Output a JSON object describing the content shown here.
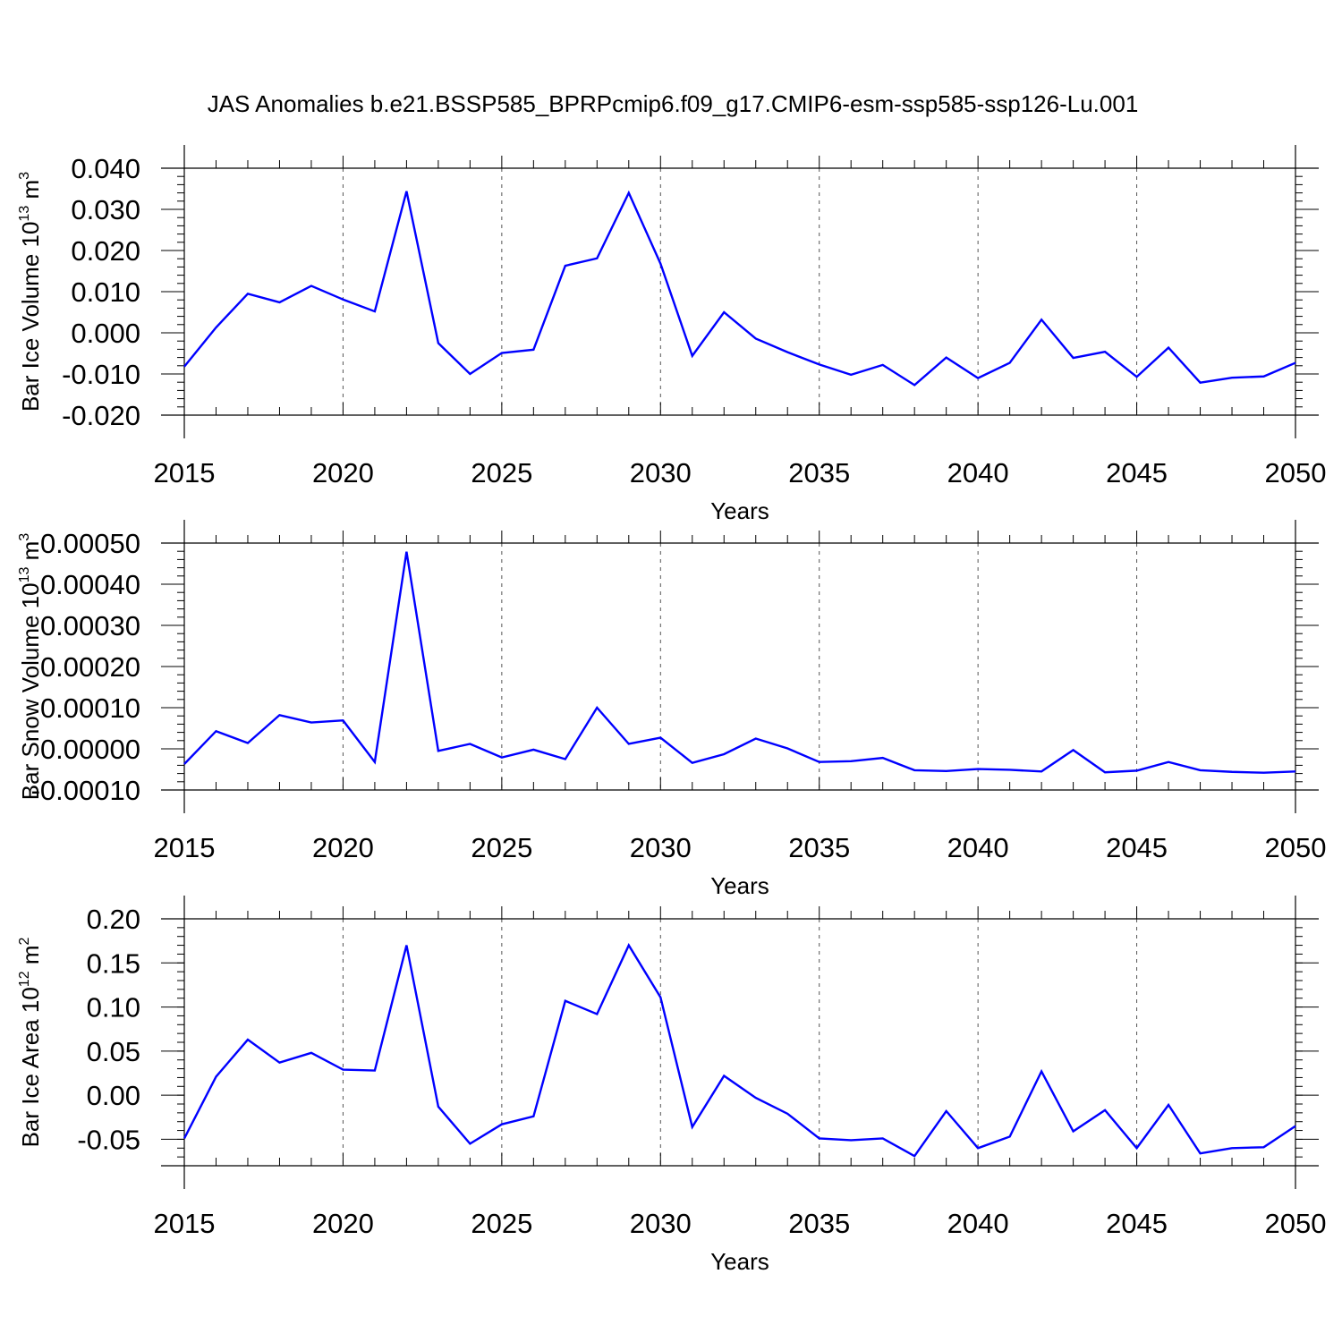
{
  "title": "JAS Anomalies b.e21.BSSP585_BPRPcmip6.f09_g17.CMIP6-esm-ssp585-ssp126-Lu.001",
  "colors": {
    "line": "#0000ff",
    "grid": "#555555",
    "axis": "#000000"
  },
  "chart_data": [
    {
      "type": "line",
      "ylabel_text": "Bar Ice Volume 10",
      "ylabel_exp": "13",
      "ylabel_unit": " m",
      "ylabel_unit_exp": "3",
      "xlabel": "Years",
      "xlim": [
        2015,
        2050
      ],
      "ylim": [
        -0.02,
        0.04
      ],
      "xticks": [
        "2015",
        "2020",
        "2025",
        "2030",
        "2035",
        "2040",
        "2045",
        "2050"
      ],
      "yticks": [
        "-0.020",
        "-0.010",
        "0.000",
        "0.010",
        "0.020",
        "0.030",
        "0.040"
      ],
      "grid_x": [
        2020,
        2025,
        2030,
        2035,
        2040,
        2045
      ],
      "x": [
        2015,
        2016,
        2017,
        2018,
        2019,
        2020,
        2021,
        2022,
        2023,
        2024,
        2025,
        2026,
        2027,
        2028,
        2029,
        2030,
        2031,
        2032,
        2033,
        2034,
        2035,
        2036,
        2037,
        2038,
        2039,
        2040,
        2041,
        2042,
        2043,
        2044,
        2045,
        2046,
        2047,
        2048,
        2049,
        2050
      ],
      "series": [
        {
          "values": [
            -0.0082,
            0.0013,
            0.0095,
            0.0074,
            0.0114,
            0.0081,
            0.0052,
            0.0344,
            -0.0025,
            -0.01,
            -0.0049,
            -0.0041,
            0.0163,
            0.0181,
            0.034,
            0.0168,
            -0.0056,
            0.005,
            -0.0014,
            -0.0047,
            -0.0077,
            -0.0102,
            -0.0078,
            -0.0127,
            -0.006,
            -0.011,
            -0.0073,
            0.0032,
            -0.0061,
            -0.0046,
            -0.0107,
            -0.0036,
            -0.0121,
            -0.0109,
            -0.0106,
            -0.0073
          ]
        }
      ]
    },
    {
      "type": "line",
      "ylabel_text": "Bar Snow Volume 10",
      "ylabel_exp": "13",
      "ylabel_unit": " m",
      "ylabel_unit_exp": "3",
      "xlabel": "Years",
      "xlim": [
        2015,
        2050
      ],
      "ylim": [
        -0.0001,
        0.0005
      ],
      "xticks": [
        "2015",
        "2020",
        "2025",
        "2030",
        "2035",
        "2040",
        "2045",
        "2050"
      ],
      "yticks": [
        "-0.00010",
        "0.00000",
        "0.00010",
        "0.00020",
        "0.00030",
        "0.00040",
        "0.00050"
      ],
      "grid_x": [
        2020,
        2025,
        2030,
        2035,
        2040,
        2045
      ],
      "x": [
        2015,
        2016,
        2017,
        2018,
        2019,
        2020,
        2021,
        2022,
        2023,
        2024,
        2025,
        2026,
        2027,
        2028,
        2029,
        2030,
        2031,
        2032,
        2033,
        2034,
        2035,
        2036,
        2037,
        2038,
        2039,
        2040,
        2041,
        2042,
        2043,
        2044,
        2045,
        2046,
        2047,
        2048,
        2049,
        2050
      ],
      "series": [
        {
          "values": [
            -3.7e-05,
            4.3e-05,
            1.4e-05,
            8.2e-05,
            6.4e-05,
            6.9e-05,
            -3.2e-05,
            0.000479,
            -5e-06,
            1.2e-05,
            -2.1e-05,
            -2e-06,
            -2.5e-05,
            0.0001,
            1.2e-05,
            2.7e-05,
            -3.4e-05,
            -1.3e-05,
            2.5e-05,
            1e-06,
            -3.2e-05,
            -3e-05,
            -2.2e-05,
            -5.2e-05,
            -5.4e-05,
            -4.9e-05,
            -5.1e-05,
            -5.5e-05,
            -3e-06,
            -5.7e-05,
            -5.3e-05,
            -3.2e-05,
            -5.2e-05,
            -5.6e-05,
            -5.8e-05,
            -5.5e-05
          ]
        }
      ]
    },
    {
      "type": "line",
      "ylabel_text": "Bar Ice Area 10",
      "ylabel_exp": "12",
      "ylabel_unit": " m",
      "ylabel_unit_exp": "2",
      "xlabel": "Years",
      "xlim": [
        2015,
        2050
      ],
      "ylim": [
        -0.08,
        0.2
      ],
      "xticks": [
        "2015",
        "2020",
        "2025",
        "2030",
        "2035",
        "2040",
        "2045",
        "2050"
      ],
      "yticks": [
        "-0.05",
        "0.00",
        "0.05",
        "0.10",
        "0.15",
        "0.20"
      ],
      "ytick_values": [
        -0.05,
        0.0,
        0.05,
        0.1,
        0.15,
        0.2
      ],
      "grid_x": [
        2020,
        2025,
        2030,
        2035,
        2040,
        2045
      ],
      "x": [
        2015,
        2016,
        2017,
        2018,
        2019,
        2020,
        2021,
        2022,
        2023,
        2024,
        2025,
        2026,
        2027,
        2028,
        2029,
        2030,
        2031,
        2032,
        2033,
        2034,
        2035,
        2036,
        2037,
        2038,
        2039,
        2040,
        2041,
        2042,
        2043,
        2044,
        2045,
        2046,
        2047,
        2048,
        2049,
        2050
      ],
      "series": [
        {
          "values": [
            -0.049,
            0.021,
            0.063,
            0.037,
            0.048,
            0.029,
            0.028,
            0.17,
            -0.013,
            -0.055,
            -0.033,
            -0.024,
            0.107,
            0.092,
            0.17,
            0.111,
            -0.036,
            0.022,
            -0.003,
            -0.021,
            -0.049,
            -0.051,
            -0.049,
            -0.069,
            -0.018,
            -0.06,
            -0.047,
            0.027,
            -0.041,
            -0.017,
            -0.06,
            -0.011,
            -0.066,
            -0.06,
            -0.059,
            -0.035
          ]
        }
      ]
    }
  ]
}
